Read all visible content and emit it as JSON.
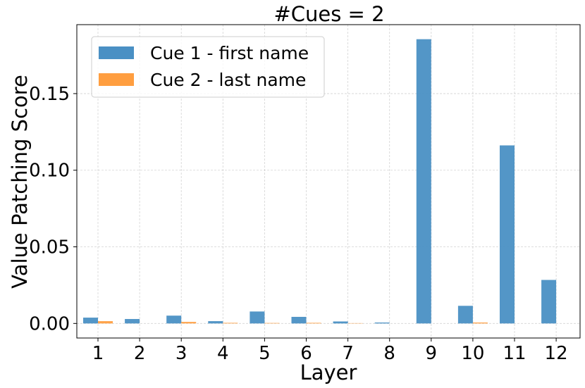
{
  "chart_data": {
    "type": "bar",
    "title": "#Cues = 2",
    "xlabel": "Layer",
    "ylabel": "Value Patching Score",
    "categories": [
      "1",
      "2",
      "3",
      "4",
      "5",
      "6",
      "7",
      "8",
      "9",
      "10",
      "11",
      "12"
    ],
    "series": [
      {
        "name": "Cue 1 - first name",
        "color": "#4a90c4",
        "values": [
          0.0038,
          0.0029,
          0.0051,
          0.0015,
          0.0078,
          0.0043,
          0.0013,
          0.0006,
          0.1855,
          0.0115,
          0.1162,
          0.0284
        ]
      },
      {
        "name": "Cue 2 - last name",
        "color": "#ff9e40",
        "values": [
          0.0015,
          0.0,
          0.001,
          0.0004,
          0.0003,
          0.0004,
          0.0002,
          0.0,
          0.0,
          0.0006,
          0.0,
          0.0
        ]
      }
    ],
    "yticks": [
      "0.00",
      "0.05",
      "0.10",
      "0.15"
    ],
    "ylim": [
      -0.0095,
      0.195
    ],
    "grid": true,
    "legend_position": "top-left"
  }
}
